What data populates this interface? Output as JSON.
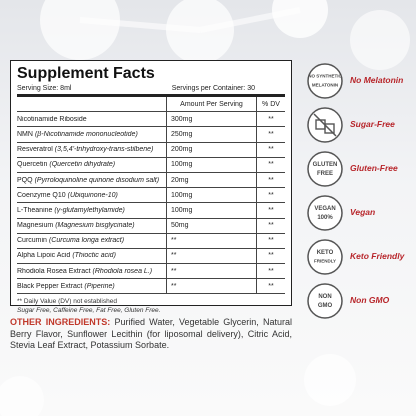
{
  "facts": {
    "title": "Supplement Facts",
    "serving_size": "Serving Size: 8ml",
    "servings": "Servings per Container: 30",
    "columns": [
      "Amount Per Serving",
      "% DV"
    ],
    "rows": [
      [
        "Nicotinamide Riboside",
        "",
        "300mg",
        "**"
      ],
      [
        "NMN",
        "(β-Nicotinamide mononucleotide)",
        "250mg",
        "**"
      ],
      [
        "Resveratrol",
        "(3,5,4'-trihydroxy-trans-stilbene)",
        "200mg",
        "**"
      ],
      [
        "Quercetin",
        "(Quercetin dihydrate)",
        "100mg",
        "**"
      ],
      [
        "PQQ",
        "(Pyrroloquinoline quinone disodium salt)",
        "20mg",
        "**"
      ],
      [
        "Coenzyme Q10",
        "(Ubiquinone-10)",
        "100mg",
        "**"
      ],
      [
        "L-Theanine",
        "(γ-glutamylethylamide)",
        "100mg",
        "**"
      ],
      [
        "Magnesium",
        "(Magnesium bisglycinate)",
        "50mg",
        "**"
      ],
      [
        "Curcumin",
        "(Curcuma longa extract)",
        "**",
        "**"
      ],
      [
        "Alpha Lipoic Acid",
        "(Thioctic acid)",
        "**",
        "**"
      ],
      [
        "Rhodiola Rosea Extract",
        "(Rhodiola rosea L.)",
        "**",
        "**"
      ],
      [
        "Black Pepper Extract",
        "(Piperine)",
        "**",
        "**"
      ]
    ],
    "footnote": "** Daily Value (DV) not established",
    "free_note": "Sugar Free, Caffeine Free, Fat Free, Gluten Free."
  },
  "other_ingredients": {
    "label": "OTHER INGREDIENTS:",
    "text": "Purified Water, Vegetable Glycerin, Natural Berry Flavor, Sunflower Lecithin (for liposomal delivery), Citric Acid, Stevia Leaf Extract, Potassium Sorbate."
  },
  "badges": [
    {
      "label": "No Melatonin",
      "icon": [
        "NO SYNTHETIC",
        "MELATONIN"
      ]
    },
    {
      "label": "Sugar-Free",
      "icon": []
    },
    {
      "label": "Gluten-Free",
      "icon": [
        "GLUTEN",
        "FREE"
      ]
    },
    {
      "label": "Vegan",
      "icon": [
        "VEGAN",
        "100%"
      ]
    },
    {
      "label": "Keto Friendly",
      "icon": [
        "KETO",
        "FRIENDLY"
      ]
    },
    {
      "label": "Non GMO",
      "icon": [
        "NON",
        "GMO"
      ]
    }
  ]
}
